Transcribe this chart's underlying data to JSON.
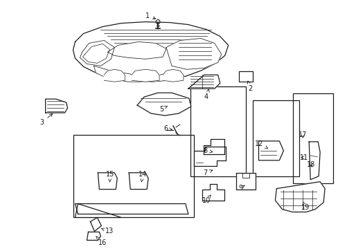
{
  "background_color": "#ffffff",
  "line_color": "#1a1a1a",
  "fig_width": 4.89,
  "fig_height": 3.6,
  "dpi": 100,
  "label_fs": 7.0
}
